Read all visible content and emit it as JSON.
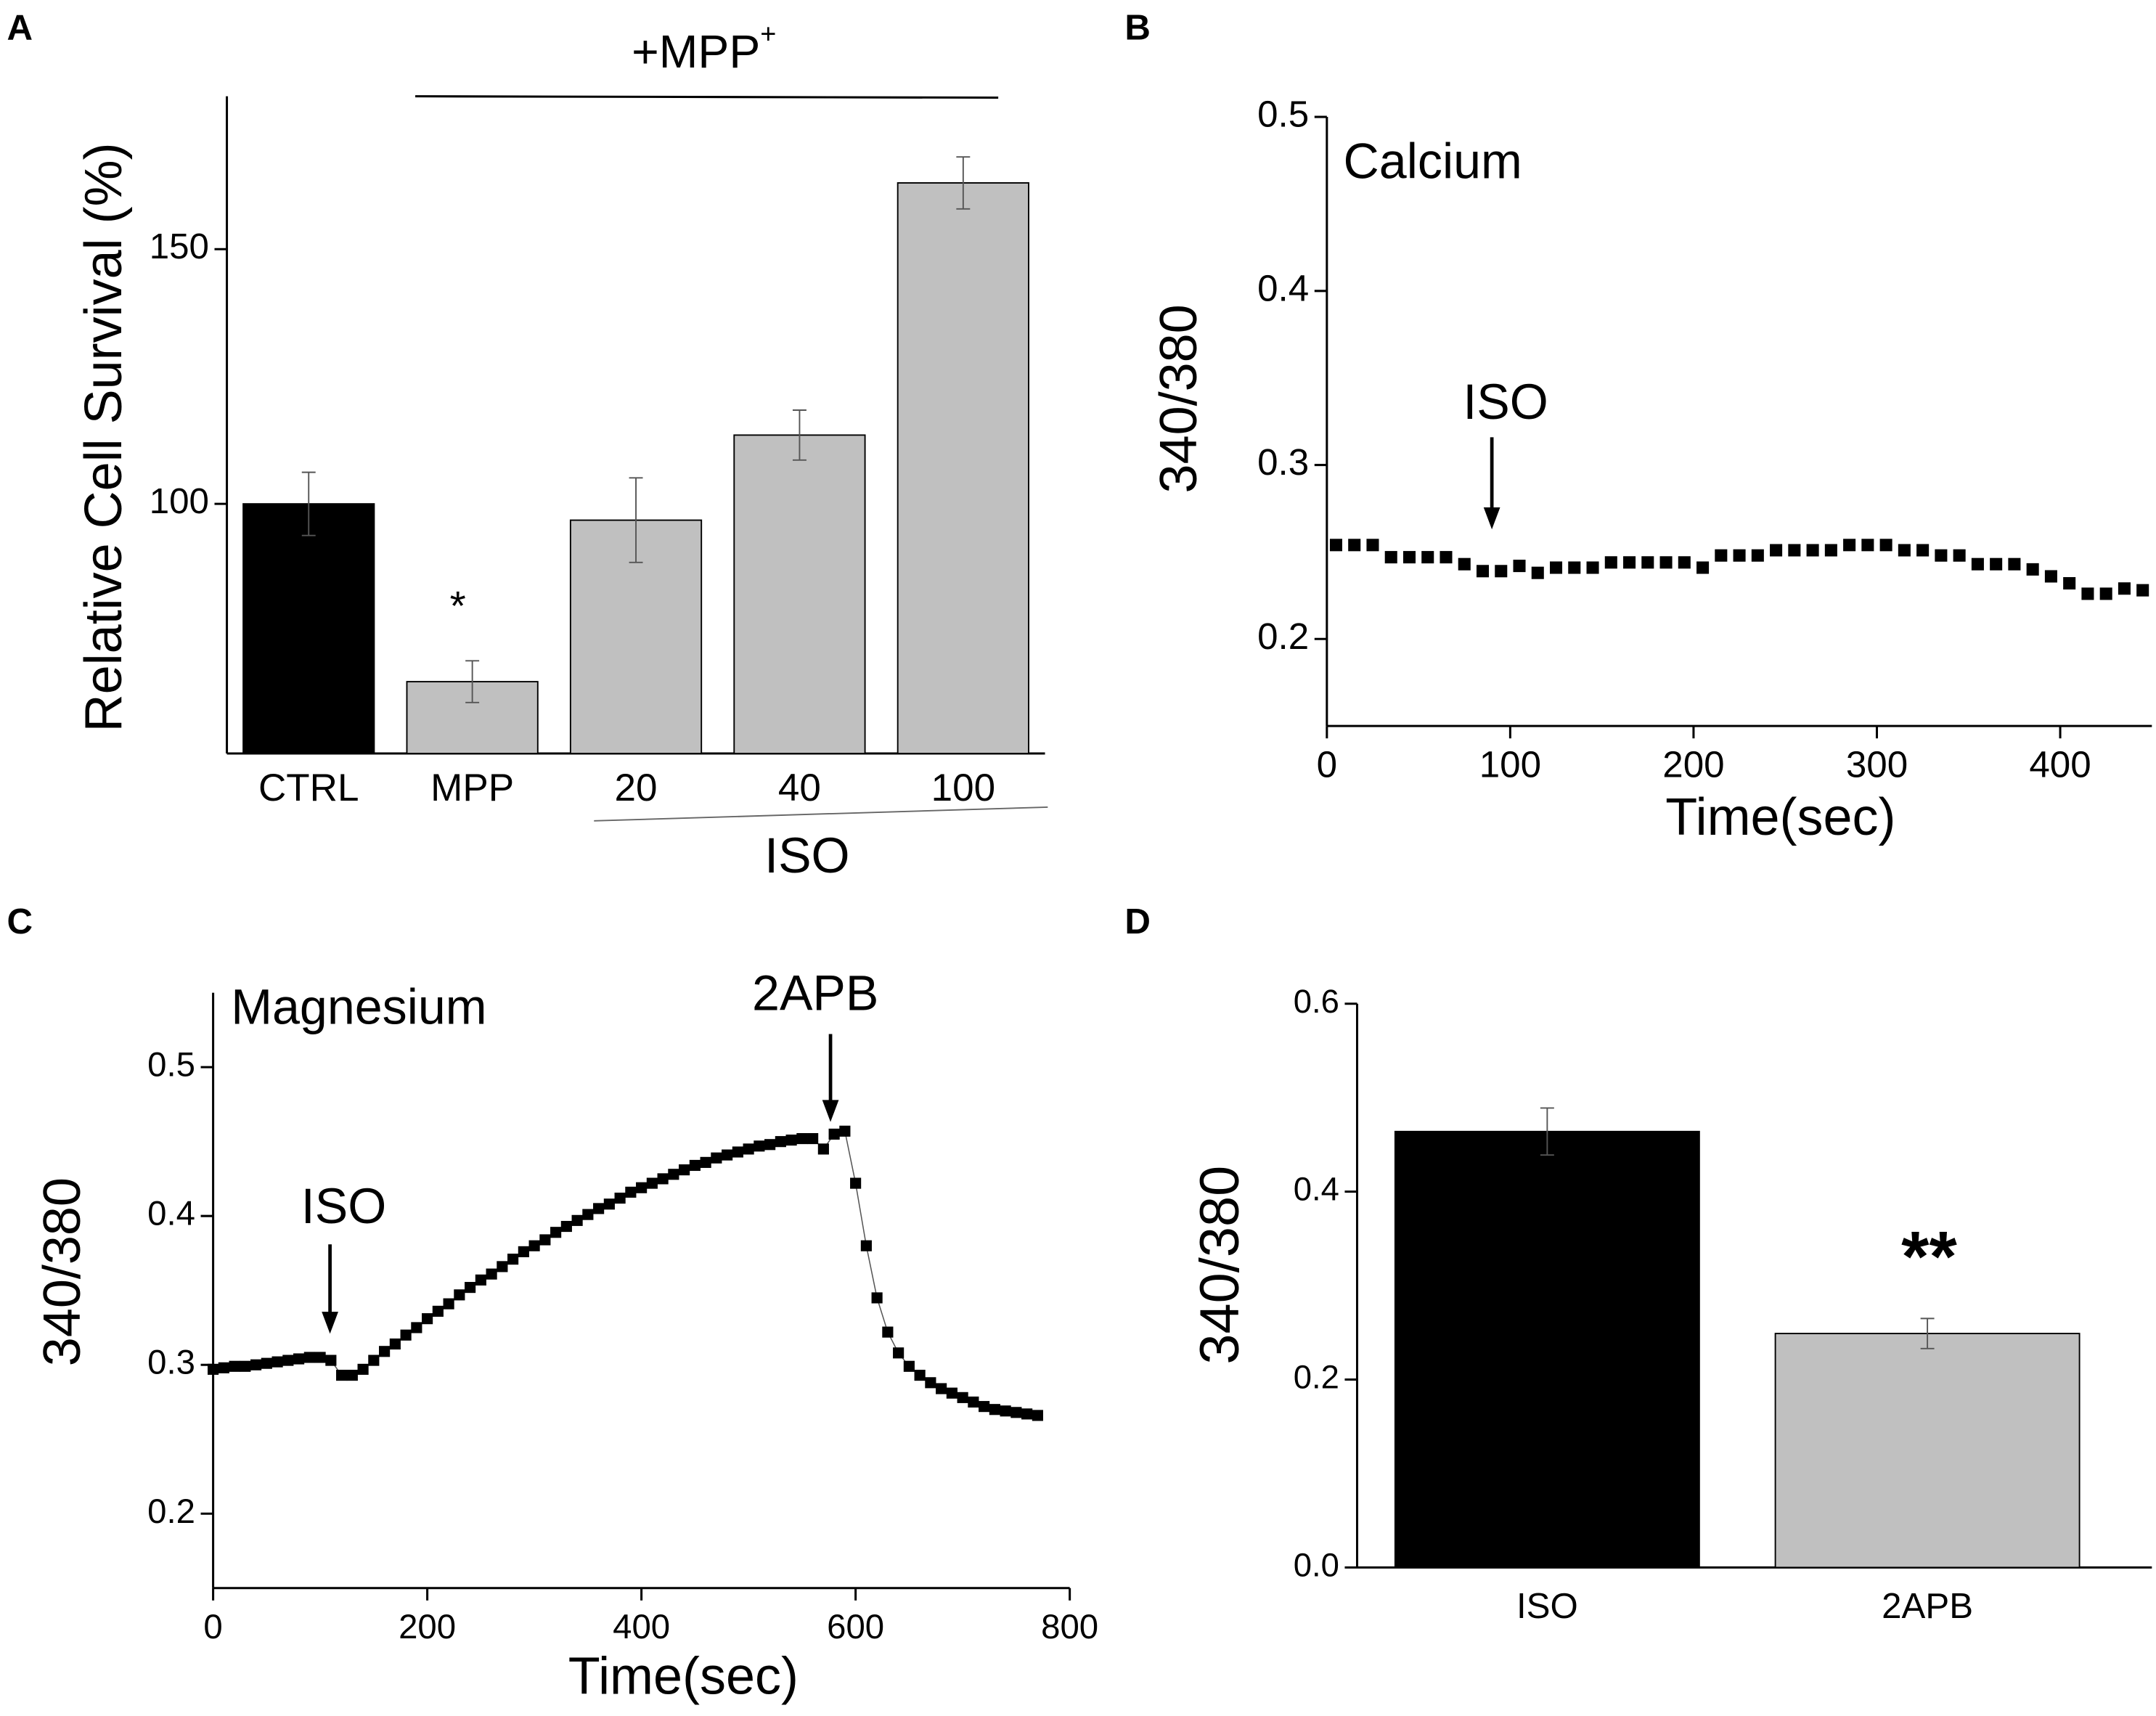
{
  "chart_data": [
    {
      "type": "bar",
      "panel": "A",
      "y_label": "Relative Cell Survival (%)",
      "categories": [
        "CTRL",
        "MPP",
        "20",
        "40",
        "100"
      ],
      "values": [
        100,
        65.1,
        96.8,
        113.5,
        163
      ],
      "errors": [
        6.2,
        4.1,
        8.3,
        4.9,
        5.1
      ],
      "colors": [
        "#000000",
        "#c0c0c0",
        "#c0c0c0",
        "#c0c0c0",
        "#c0c0c0"
      ],
      "ylim": [
        51,
        180
      ],
      "yticks": [
        100,
        150
      ],
      "significance": "*",
      "bracket_label": "+MPP",
      "bracket_label_sup": "+",
      "group_label": "ISO"
    },
    {
      "type": "line",
      "panel": "B",
      "title": "Calcium",
      "x_label": "Time(sec)",
      "y_label": "340/380",
      "line": false,
      "color": "#000000",
      "x": [
        5,
        15,
        25,
        35,
        45,
        55,
        65,
        75,
        85,
        95,
        105,
        115,
        125,
        135,
        145,
        155,
        165,
        175,
        185,
        195,
        205,
        215,
        225,
        235,
        245,
        255,
        265,
        275,
        285,
        295,
        305,
        315,
        325,
        335,
        345,
        355,
        365,
        375,
        385,
        395,
        405,
        415,
        425,
        435,
        445
      ],
      "values": [
        0.254,
        0.254,
        0.254,
        0.247,
        0.247,
        0.247,
        0.247,
        0.243,
        0.239,
        0.239,
        0.242,
        0.238,
        0.241,
        0.241,
        0.241,
        0.244,
        0.244,
        0.244,
        0.244,
        0.244,
        0.241,
        0.248,
        0.248,
        0.248,
        0.251,
        0.251,
        0.251,
        0.251,
        0.254,
        0.254,
        0.254,
        0.251,
        0.251,
        0.248,
        0.248,
        0.243,
        0.243,
        0.243,
        0.24,
        0.236,
        0.232,
        0.226,
        0.226,
        0.229,
        0.228
      ],
      "xlim": [
        0,
        450
      ],
      "xticks": [
        0,
        100,
        200,
        300,
        400
      ],
      "ylim": [
        0.15,
        0.5
      ],
      "yticks": [
        0.2,
        0.3,
        0.4,
        0.5
      ],
      "annotations": [
        "ISO"
      ]
    },
    {
      "type": "line",
      "panel": "C",
      "title": "Magnesium",
      "x_label": "Time(sec)",
      "y_label": "340/380",
      "line": true,
      "color": "#000000",
      "x": [
        0,
        10,
        20,
        30,
        40,
        50,
        60,
        70,
        80,
        90,
        100,
        110,
        120,
        130,
        140,
        150,
        160,
        170,
        180,
        190,
        200,
        210,
        220,
        230,
        240,
        250,
        260,
        270,
        280,
        290,
        300,
        310,
        320,
        330,
        340,
        350,
        360,
        370,
        380,
        390,
        400,
        410,
        420,
        430,
        440,
        450,
        460,
        470,
        480,
        490,
        500,
        510,
        520,
        530,
        540,
        550,
        560,
        570,
        580,
        590,
        600,
        610,
        620,
        630,
        640,
        650,
        660,
        670,
        680,
        690,
        700,
        710,
        720,
        730,
        740,
        750,
        760,
        770
      ],
      "values": [
        0.297,
        0.298,
        0.299,
        0.299,
        0.3,
        0.301,
        0.302,
        0.303,
        0.304,
        0.305,
        0.305,
        0.303,
        0.293,
        0.293,
        0.297,
        0.303,
        0.309,
        0.314,
        0.32,
        0.325,
        0.331,
        0.336,
        0.341,
        0.347,
        0.352,
        0.357,
        0.361,
        0.366,
        0.371,
        0.376,
        0.38,
        0.384,
        0.389,
        0.393,
        0.397,
        0.401,
        0.405,
        0.408,
        0.412,
        0.416,
        0.419,
        0.422,
        0.425,
        0.428,
        0.431,
        0.434,
        0.436,
        0.439,
        0.441,
        0.443,
        0.445,
        0.447,
        0.448,
        0.45,
        0.451,
        0.452,
        0.452,
        0.445,
        0.455,
        0.457,
        0.422,
        0.38,
        0.345,
        0.322,
        0.308,
        0.299,
        0.293,
        0.288,
        0.284,
        0.281,
        0.278,
        0.275,
        0.272,
        0.27,
        0.269,
        0.268,
        0.267,
        0.266
      ],
      "xlim": [
        0,
        800
      ],
      "xticks": [
        0,
        200,
        400,
        600,
        800
      ],
      "ylim": [
        0.15,
        0.55
      ],
      "yticks": [
        0.2,
        0.3,
        0.4,
        0.5
      ],
      "annotations": [
        "ISO",
        "2APB"
      ]
    },
    {
      "type": "bar",
      "panel": "D",
      "y_label": "340/380",
      "categories": [
        "ISO",
        "2APB"
      ],
      "values": [
        0.464,
        0.249
      ],
      "errors": [
        0.025,
        0.016
      ],
      "colors": [
        "#000000",
        "#c0c0c0"
      ],
      "ylim": [
        0,
        0.6
      ],
      "yticks": [
        {
          "value": 0,
          "label": "0.0"
        },
        0.2,
        0.4,
        0.6
      ],
      "significance": "**"
    }
  ]
}
